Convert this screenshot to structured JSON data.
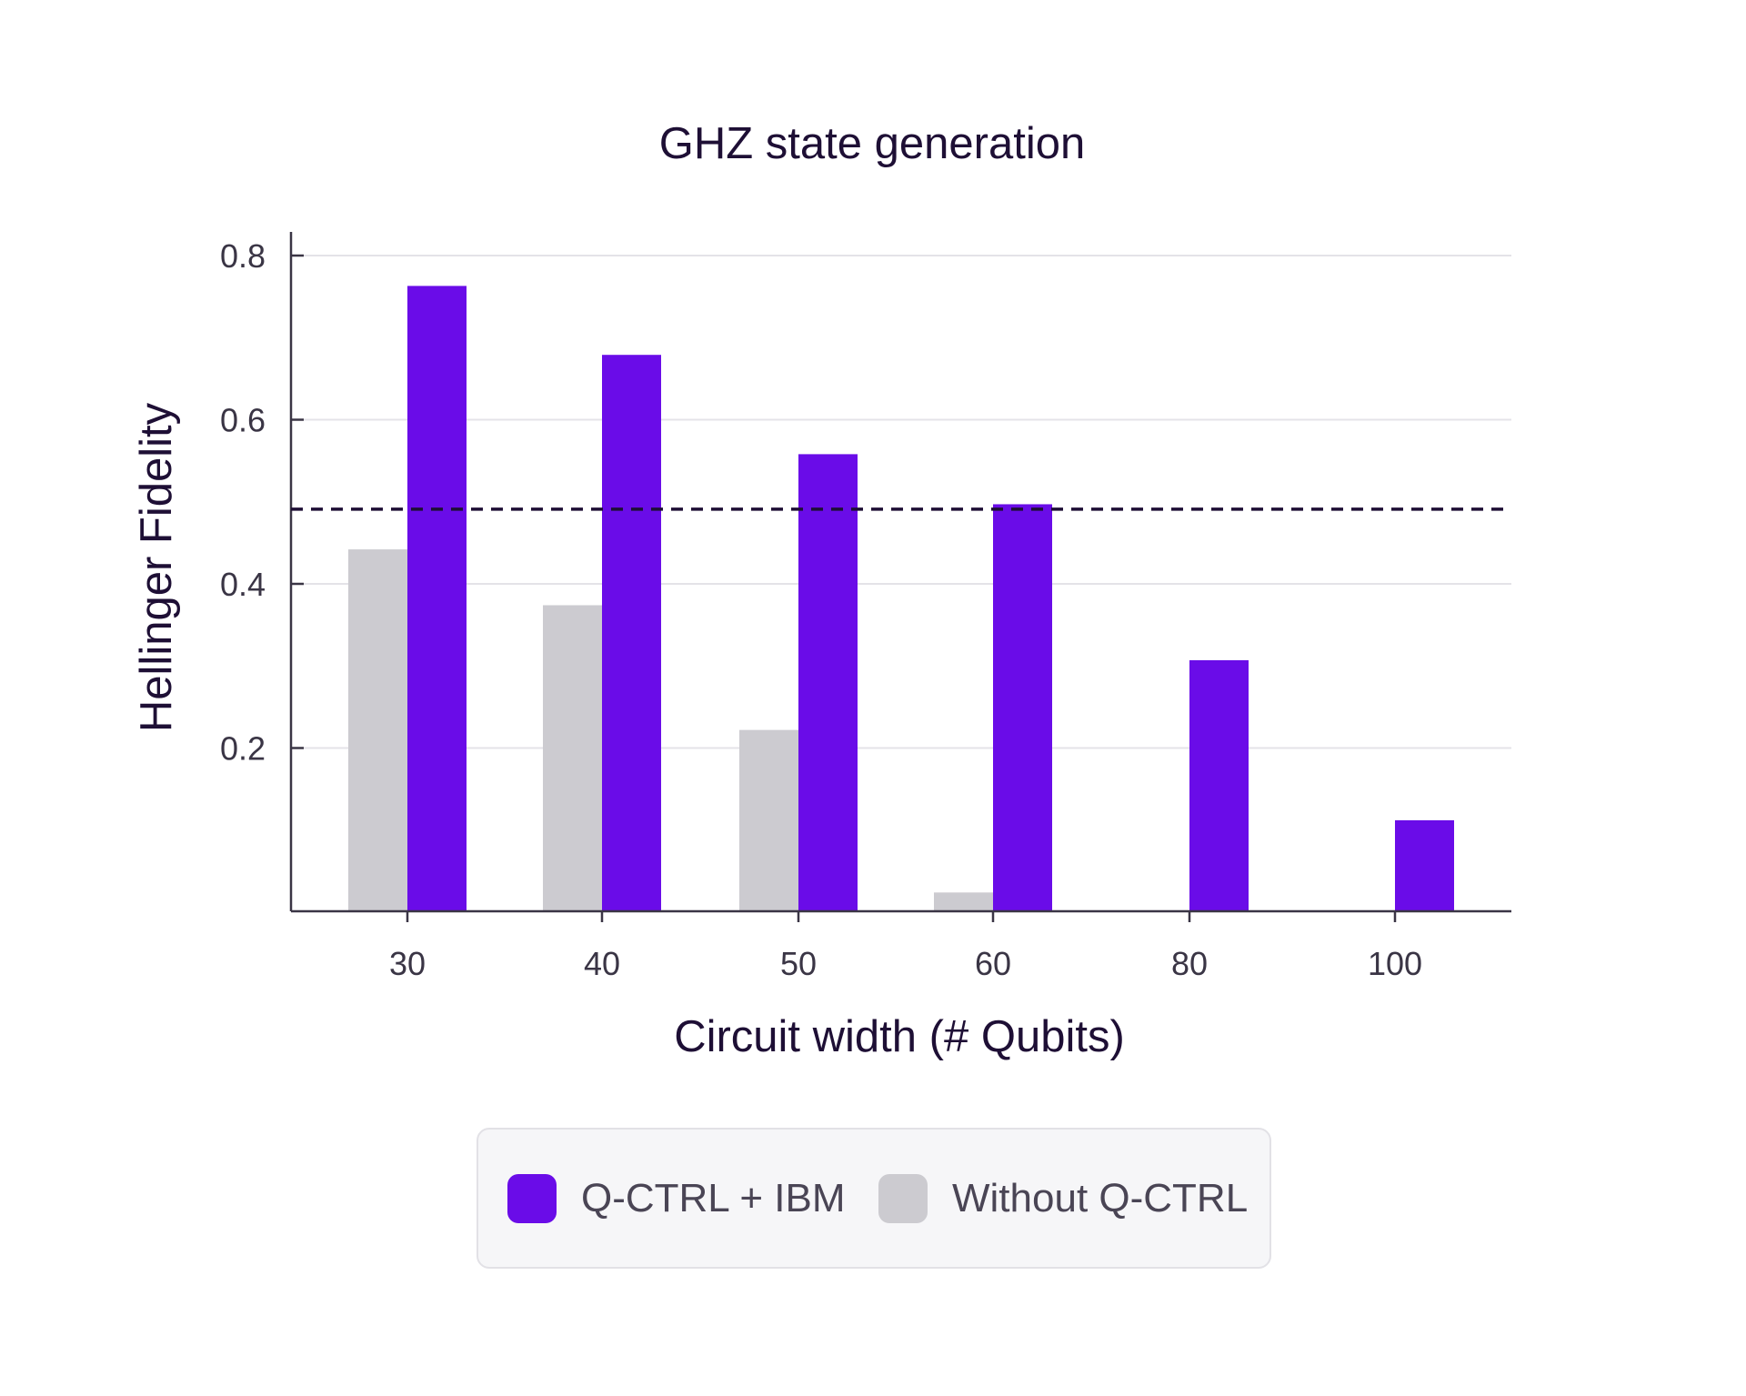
{
  "chart_data": {
    "type": "bar",
    "title": "GHZ state generation",
    "xlabel": "Circuit width (# Qubits)",
    "ylabel": "Hellinger Fidelity",
    "categories": [
      "30",
      "40",
      "50",
      "60",
      "80",
      "100"
    ],
    "series": [
      {
        "name": "Without Q-CTRL",
        "color": "#cccbd0",
        "values": [
          0.442,
          0.374,
          0.222,
          0.024,
          null,
          null
        ]
      },
      {
        "name": "Q-CTRL + IBM",
        "color": "#6a0ce8",
        "values": [
          0.763,
          0.679,
          0.558,
          0.497,
          0.307,
          0.112
        ]
      }
    ],
    "reference_line": {
      "y": 0.491,
      "style": "dashed",
      "color": "#1e0f35"
    },
    "yticks": [
      "0.2",
      "0.4",
      "0.6",
      "0.8"
    ],
    "ytick_values": [
      0.2,
      0.4,
      0.6,
      0.8
    ],
    "ylim": [
      0,
      0.83
    ],
    "grid": true,
    "legend_position": "bottom-center"
  },
  "legend": {
    "items": [
      {
        "label": "Q-CTRL + IBM",
        "color": "#6a0ce8"
      },
      {
        "label": "Without Q-CTRL",
        "color": "#cccbd0"
      }
    ]
  }
}
